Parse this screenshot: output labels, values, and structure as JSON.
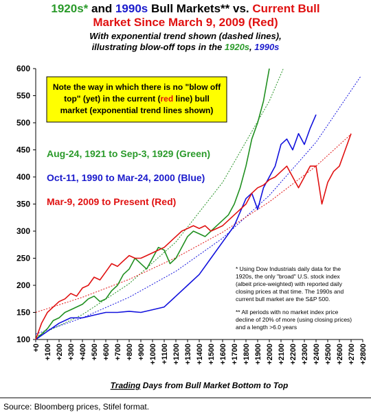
{
  "chart_data": {
    "type": "line",
    "title_lines": [
      [
        {
          "text": "1920s*",
          "color": "#2a9a2a"
        },
        {
          "text": " and ",
          "color": "#000000"
        },
        {
          "text": "1990s",
          "color": "#1a1acc"
        },
        {
          "text": " Bull Markets** vs. ",
          "color": "#000000"
        },
        {
          "text": "Current Bull",
          "color": "#e01010"
        }
      ],
      [
        {
          "text": "Market Since March 9, 2009 (Red)",
          "color": "#e01010"
        }
      ]
    ],
    "subtitle_lines": [
      [
        {
          "text": "With exponential trend shown (dashed lines),",
          "color": "#000000"
        }
      ],
      [
        {
          "text": "illustrating blow-off tops in the ",
          "color": "#000000"
        },
        {
          "text": "1920s",
          "color": "#2a9a2a"
        },
        {
          "text": ", ",
          "color": "#000000"
        },
        {
          "text": "1990s",
          "color": "#1a1acc"
        }
      ]
    ],
    "note_box": {
      "color": "#ffff00",
      "lines": [
        [
          {
            "text": "Note the way in which there is no \"blow off",
            "color": "#000000"
          }
        ],
        [
          {
            "text": "top\" (yet) in the current (",
            "color": "#000000"
          },
          {
            "text": "red",
            "color": "#e01010"
          },
          {
            "text": " line) bull",
            "color": "#000000"
          }
        ],
        [
          {
            "text": "market (exponential trend lines shown)",
            "color": "#000000"
          }
        ]
      ]
    },
    "period_labels": [
      {
        "text": "Aug-24, 1921 to Sep-3, 1929 (Green)",
        "color": "#2a9a2a"
      },
      {
        "text": "Oct-11, 1990 to Mar-24, 2000 (Blue)",
        "color": "#1a1acc"
      },
      {
        "text": "Mar-9, 2009 to Present (Red)",
        "color": "#e01010"
      }
    ],
    "footnotes": [
      "* Using Dow Industrials daily data for the",
      "1920s, the only \"broad\" U.S. stock index",
      "(albeit price-weighted) with reported daily",
      "closing prices at that time. The 1990s and",
      "current bull market are the S&P 500.",
      "** All periods with no market index price",
      "decline of 20% of more (using closing prices)",
      "and a length >6.0 years"
    ],
    "xlabel_parts": [
      {
        "text": "Trading",
        "emphasis": true
      },
      {
        "text": " Days from Bull Market Bottom to Top",
        "emphasis": false
      }
    ],
    "source": "Source: Bloomberg prices, Stifel format.",
    "xlim": [
      0,
      2800
    ],
    "ylim": [
      100,
      600
    ],
    "yticks": [
      100,
      150,
      200,
      250,
      300,
      350,
      400,
      450,
      500,
      550,
      600
    ],
    "xticks": [
      {
        "value": 0,
        "label": "+0"
      },
      {
        "value": 100,
        "label": "+100"
      },
      {
        "value": 200,
        "label": "+200"
      },
      {
        "value": 300,
        "label": "+300"
      },
      {
        "value": 400,
        "label": "+400"
      },
      {
        "value": 500,
        "label": "+500"
      },
      {
        "value": 600,
        "label": "+600"
      },
      {
        "value": 700,
        "label": "+700"
      },
      {
        "value": 800,
        "label": "+800"
      },
      {
        "value": 900,
        "label": "+900"
      },
      {
        "value": 1000,
        "label": "+1000"
      },
      {
        "value": 1100,
        "label": "+1100"
      },
      {
        "value": 1200,
        "label": "+1200"
      },
      {
        "value": 1300,
        "label": "+1300"
      },
      {
        "value": 1400,
        "label": "+1400"
      },
      {
        "value": 1500,
        "label": "+1500"
      },
      {
        "value": 1600,
        "label": "+1600"
      },
      {
        "value": 1700,
        "label": "+1700"
      },
      {
        "value": 1800,
        "label": "+1800"
      },
      {
        "value": 1900,
        "label": "+1900"
      },
      {
        "value": 2000,
        "label": "+2000"
      },
      {
        "value": 2100,
        "label": "+2100"
      },
      {
        "value": 2200,
        "label": "+2200"
      },
      {
        "value": 2300,
        "label": "+2300"
      },
      {
        "value": 2400,
        "label": "+2400"
      },
      {
        "value": 2500,
        "label": "+2500"
      },
      {
        "value": 2600,
        "label": "+2600"
      },
      {
        "value": 2700,
        "label": "+2700"
      },
      {
        "value": 2800,
        "label": "+2800"
      }
    ],
    "series": [
      {
        "color": "#1f8f1f",
        "x": [
          0,
          50,
          100,
          150,
          200,
          250,
          300,
          350,
          400,
          450,
          500,
          550,
          600,
          650,
          700,
          750,
          800,
          850,
          900,
          950,
          1000,
          1050,
          1100,
          1150,
          1200,
          1250,
          1300,
          1350,
          1400,
          1450,
          1500,
          1550,
          1600,
          1650,
          1700,
          1750,
          1800,
          1850,
          1900,
          1950,
          2000
        ],
        "values": [
          100,
          110,
          120,
          135,
          140,
          150,
          155,
          160,
          165,
          175,
          180,
          170,
          175,
          190,
          200,
          220,
          230,
          250,
          240,
          230,
          250,
          270,
          265,
          240,
          250,
          270,
          290,
          300,
          295,
          290,
          300,
          310,
          320,
          330,
          350,
          380,
          420,
          470,
          500,
          540,
          600
        ]
      },
      {
        "color": "#1010dd",
        "x": [
          0,
          100,
          200,
          300,
          400,
          500,
          600,
          700,
          800,
          900,
          1000,
          1100,
          1200,
          1300,
          1400,
          1500,
          1600,
          1700,
          1800,
          1850,
          1900,
          1950,
          2000,
          2050,
          2100,
          2150,
          2200,
          2250,
          2300,
          2350,
          2400
        ],
        "values": [
          100,
          115,
          130,
          140,
          140,
          145,
          150,
          150,
          152,
          150,
          155,
          160,
          180,
          200,
          220,
          250,
          280,
          310,
          360,
          370,
          340,
          380,
          400,
          420,
          460,
          470,
          450,
          480,
          460,
          490,
          515
        ]
      },
      {
        "color": "#e01010",
        "x": [
          0,
          50,
          100,
          150,
          200,
          250,
          300,
          350,
          400,
          450,
          500,
          550,
          600,
          650,
          700,
          750,
          800,
          850,
          900,
          950,
          1000,
          1050,
          1100,
          1150,
          1200,
          1250,
          1300,
          1350,
          1400,
          1450,
          1500,
          1550,
          1600,
          1650,
          1700,
          1750,
          1800,
          1850,
          1900,
          1950,
          2000,
          2050,
          2100,
          2150,
          2200,
          2250,
          2300,
          2350,
          2400,
          2450,
          2500,
          2550,
          2600,
          2650,
          2700
        ],
        "values": [
          100,
          130,
          150,
          160,
          170,
          175,
          185,
          180,
          195,
          200,
          215,
          210,
          225,
          240,
          235,
          245,
          255,
          250,
          250,
          255,
          260,
          265,
          270,
          280,
          290,
          300,
          305,
          310,
          305,
          310,
          300,
          305,
          310,
          320,
          330,
          340,
          350,
          370,
          380,
          385,
          395,
          400,
          410,
          420,
          400,
          380,
          400,
          420,
          420,
          350,
          390,
          410,
          420,
          450,
          480
        ]
      }
    ],
    "trend_lines": [
      {
        "color": "#1f8f1f",
        "x": [
          0,
          400,
          800,
          1200,
          1600,
          2000,
          2120
        ],
        "values": [
          105,
          146,
          203,
          280,
          390,
          540,
          600
        ]
      },
      {
        "color": "#1010dd",
        "x": [
          0,
          400,
          800,
          1200,
          1600,
          2000,
          2400,
          2780
        ],
        "values": [
          110,
          140,
          178,
          226,
          287,
          366,
          464,
          585
        ]
      },
      {
        "color": "#e01010",
        "x": [
          0,
          400,
          800,
          1200,
          1600,
          2000,
          2400,
          2700
        ],
        "values": [
          150,
          178,
          211,
          251,
          298,
          354,
          420,
          479
        ]
      }
    ]
  }
}
